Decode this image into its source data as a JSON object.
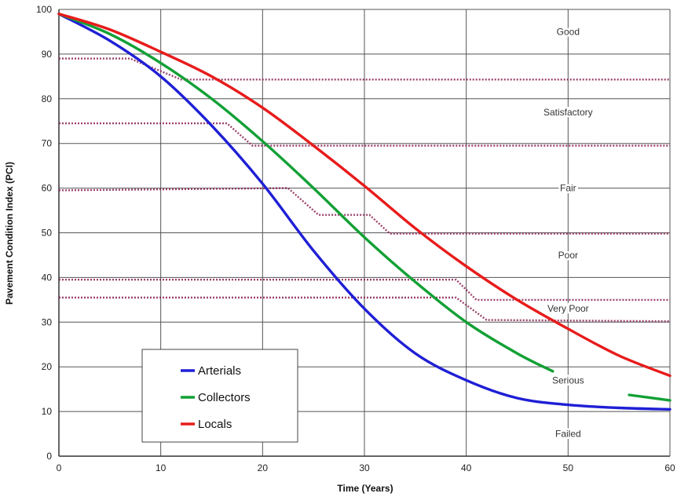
{
  "chart_data": {
    "type": "line",
    "title": "",
    "xlabel": "Time (Years)",
    "ylabel": "Pavement Condition Index (PCI)",
    "xlim": [
      0,
      60
    ],
    "ylim": [
      0,
      100
    ],
    "xticks": [
      0,
      10,
      20,
      30,
      40,
      50,
      60
    ],
    "yticks": [
      0,
      10,
      20,
      30,
      40,
      50,
      60,
      70,
      80,
      90,
      100
    ],
    "grid": true,
    "legend_position": "bottom-left",
    "series": [
      {
        "name": "Arterials",
        "color": "#1f1fd6",
        "x": [
          0,
          5,
          10,
          15,
          20,
          25,
          30,
          35,
          40,
          45,
          50,
          55,
          60
        ],
        "y": [
          99,
          93,
          85,
          74,
          61,
          46,
          33,
          23,
          17,
          13,
          11.5,
          10.8,
          10.5
        ]
      },
      {
        "name": "Collectors",
        "color": "#12a035",
        "x": [
          0,
          5,
          10,
          15,
          20,
          25,
          30,
          35,
          40,
          45,
          48.5,
          56,
          60
        ],
        "y": [
          99,
          94.5,
          88,
          80,
          70.5,
          60,
          49,
          39,
          30,
          23,
          19,
          13.7,
          12.5
        ],
        "breaks": [
          {
            "from": 48.5,
            "to": 56
          }
        ]
      },
      {
        "name": "Locals",
        "color": "#e81b1b",
        "x": [
          0,
          5,
          10,
          15,
          20,
          25,
          30,
          35,
          40,
          45,
          50,
          55,
          60
        ],
        "y": [
          99,
          95.5,
          90.5,
          85,
          78,
          69.5,
          60.5,
          51,
          42.5,
          35,
          28.5,
          22.5,
          18
        ]
      }
    ],
    "condition_bands": [
      {
        "label": "Good",
        "pci": 95
      },
      {
        "label": "Satisfactory",
        "pci": 77
      },
      {
        "label": "Fair",
        "pci": 60
      },
      {
        "label": "Poor",
        "pci": 45
      },
      {
        "label": "Very Poor",
        "pci": 33
      },
      {
        "label": "Serious",
        "pci": 17
      },
      {
        "label": "Failed",
        "pci": 5
      }
    ],
    "threshold_lines": {
      "color": "#8b2252",
      "lines": [
        {
          "x": [
            0,
            7,
            12,
            60
          ],
          "y": [
            89,
            89,
            84.3,
            84.3
          ]
        },
        {
          "x": [
            0,
            16.5,
            19,
            60
          ],
          "y": [
            74.5,
            74.5,
            69.5,
            69.5
          ]
        },
        {
          "x": [
            0,
            22.5,
            25.5,
            30.5,
            32.5,
            60
          ],
          "y": [
            59.5,
            60,
            54,
            54,
            49.8,
            49.8
          ]
        },
        {
          "x": [
            0,
            39,
            41,
            60
          ],
          "y": [
            39.5,
            39.5,
            35,
            35
          ]
        },
        {
          "x": [
            0,
            39,
            42,
            60
          ],
          "y": [
            35.5,
            35.5,
            30.5,
            30.2
          ]
        }
      ]
    }
  }
}
